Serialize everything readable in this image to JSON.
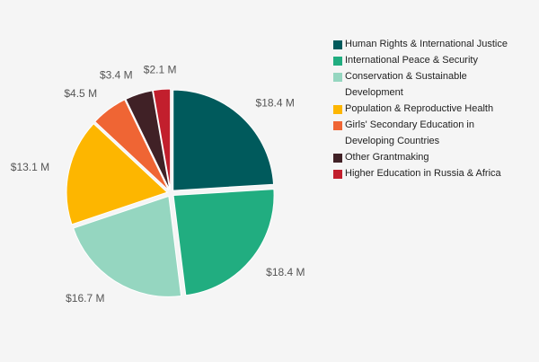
{
  "chart_data": {
    "type": "pie",
    "unit": "M",
    "currency": "$",
    "slices": [
      {
        "name": "Human Rights & International Justice",
        "value": 18.4,
        "label": "$18.4 M",
        "color": "#005a5c"
      },
      {
        "name": "International Peace & Security",
        "value": 18.4,
        "label": "$18.4 M",
        "color": "#21ad80"
      },
      {
        "name": "Conservation & Sustainable Development",
        "value": 16.7,
        "label": "$16.7 M",
        "color": "#95d6c0"
      },
      {
        "name": "Population & Reproductive Health",
        "value": 13.1,
        "label": "$13.1 M",
        "color": "#fdb600"
      },
      {
        "name": "Girls' Secondary Education in Developing Countries",
        "value": 4.5,
        "label": "$4.5 M",
        "color": "#ef6534"
      },
      {
        "name": "Other Grantmaking",
        "value": 3.4,
        "label": "$3.4 M",
        "color": "#402126"
      },
      {
        "name": "Higher Education in Russia & Africa",
        "value": 2.1,
        "label": "$2.1 M",
        "color": "#c21f2d"
      }
    ],
    "legend_position": "right",
    "start_angle_deg": 0,
    "direction": "clockwise"
  },
  "legend": {
    "items": [
      {
        "lines": [
          "Human Rights & International Justice"
        ],
        "color": "#005a5c"
      },
      {
        "lines": [
          "International Peace & Security"
        ],
        "color": "#21ad80"
      },
      {
        "lines": [
          "Conservation & Sustainable",
          "Development"
        ],
        "color": "#95d6c0"
      },
      {
        "lines": [
          "Population & Reproductive Health"
        ],
        "color": "#fdb600"
      },
      {
        "lines": [
          "Girls' Secondary Education in",
          "Developing Countries"
        ],
        "color": "#ef6534"
      },
      {
        "lines": [
          "Other Grantmaking"
        ],
        "color": "#402126"
      },
      {
        "lines": [
          "Higher Education in Russia & Africa"
        ],
        "color": "#c21f2d"
      }
    ]
  }
}
